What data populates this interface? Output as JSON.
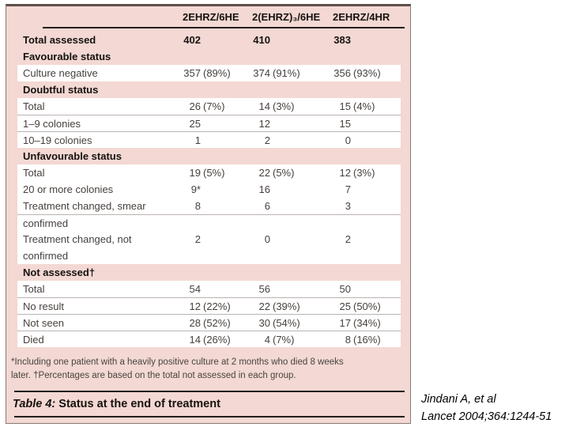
{
  "table": {
    "columns": [
      "2EHRZ/6HE",
      "2(EHRZ)₃/6HE",
      "2EHRZ/4HR"
    ],
    "rows": [
      {
        "label": "Total assessed",
        "bold": true,
        "bg": "pink",
        "sep": false,
        "cells": [
          [
            "402"
          ],
          [
            "410"
          ],
          [
            "383"
          ]
        ]
      },
      {
        "label": "Favourable status",
        "bold": true,
        "bg": "pink",
        "sep": false,
        "cells": []
      },
      {
        "label": "Culture negative",
        "bold": false,
        "bg": "white",
        "sep": false,
        "cells": [
          [
            "357",
            "(89%)"
          ],
          [
            "374",
            "(91%)"
          ],
          [
            "356",
            "(93%)"
          ]
        ]
      },
      {
        "label": "Doubtful status",
        "bold": true,
        "bg": "pink",
        "sep": false,
        "cells": []
      },
      {
        "label": "Total",
        "bold": false,
        "bg": "white",
        "sep": false,
        "cells": [
          [
            "26",
            "(7%)"
          ],
          [
            "14",
            "(3%)"
          ],
          [
            "15",
            "(4%)"
          ]
        ]
      },
      {
        "label": "1–9 colonies",
        "bold": false,
        "bg": "white",
        "sep": true,
        "cells": [
          [
            "25"
          ],
          [
            "12"
          ],
          [
            "15"
          ]
        ]
      },
      {
        "label": "10–19 colonies",
        "bold": false,
        "bg": "white",
        "sep": true,
        "cells": [
          [
            "1"
          ],
          [
            "2"
          ],
          [
            "0"
          ]
        ]
      },
      {
        "label": "Unfavourable status",
        "bold": true,
        "bg": "pink",
        "sep": false,
        "cells": []
      },
      {
        "label": "Total",
        "bold": false,
        "bg": "white",
        "sep": false,
        "cells": [
          [
            "19",
            "(5%)"
          ],
          [
            "22",
            "(5%)"
          ],
          [
            "12",
            "(3%)"
          ]
        ]
      },
      {
        "label": "20 or more colonies",
        "bold": false,
        "bg": "white",
        "sep": false,
        "cells": [
          [
            "9*"
          ],
          [
            "16"
          ],
          [
            "7"
          ]
        ]
      },
      {
        "label": "Treatment changed, smear",
        "bold": false,
        "bg": "white",
        "sep": false,
        "cells": [
          [
            "8"
          ],
          [
            "6"
          ],
          [
            "3"
          ]
        ]
      },
      {
        "label": "confirmed",
        "bold": false,
        "bg": "white",
        "sep": true,
        "cells": []
      },
      {
        "label": "Treatment changed, not",
        "bold": false,
        "bg": "white",
        "sep": false,
        "cells": [
          [
            "2"
          ],
          [
            "0"
          ],
          [
            "2"
          ]
        ]
      },
      {
        "label": "confirmed",
        "bold": false,
        "bg": "white",
        "sep": false,
        "cells": []
      },
      {
        "label": "Not assessed†",
        "bold": true,
        "bg": "pink",
        "sep": false,
        "cells": []
      },
      {
        "label": "Total",
        "bold": false,
        "bg": "white",
        "sep": false,
        "cells": [
          [
            "54"
          ],
          [
            "56"
          ],
          [
            "50"
          ]
        ]
      },
      {
        "label": "No result",
        "bold": false,
        "bg": "white",
        "sep": true,
        "cells": [
          [
            "12",
            "(22%)"
          ],
          [
            "22",
            "(39%)"
          ],
          [
            "25",
            "(50%)"
          ]
        ]
      },
      {
        "label": "Not seen",
        "bold": false,
        "bg": "white",
        "sep": true,
        "cells": [
          [
            "28",
            "(52%)"
          ],
          [
            "30",
            "(54%)"
          ],
          [
            "17",
            "(34%)"
          ]
        ]
      },
      {
        "label": "Died",
        "bold": false,
        "bg": "white",
        "sep": true,
        "cells": [
          [
            "14",
            "(26%)"
          ],
          [
            "4",
            "(7%)"
          ],
          [
            "8",
            "(16%)"
          ]
        ]
      }
    ],
    "footnote_line1": "*Including one patient with a heavily positive culture at 2 months who died 8 weeks",
    "footnote_line2": "later. †Percentages are based on the total not assessed in each group.",
    "caption_label": "Table 4:",
    "caption_text": " Status at the end of treatment"
  },
  "citation": {
    "line1": "Jindani A, et al",
    "line2": "Lancet 2004;364:1244-51"
  },
  "colors": {
    "panel_pink": "#f3d8d3",
    "rule_black": "#241e1c",
    "separator_gray": "#bab4b1"
  }
}
